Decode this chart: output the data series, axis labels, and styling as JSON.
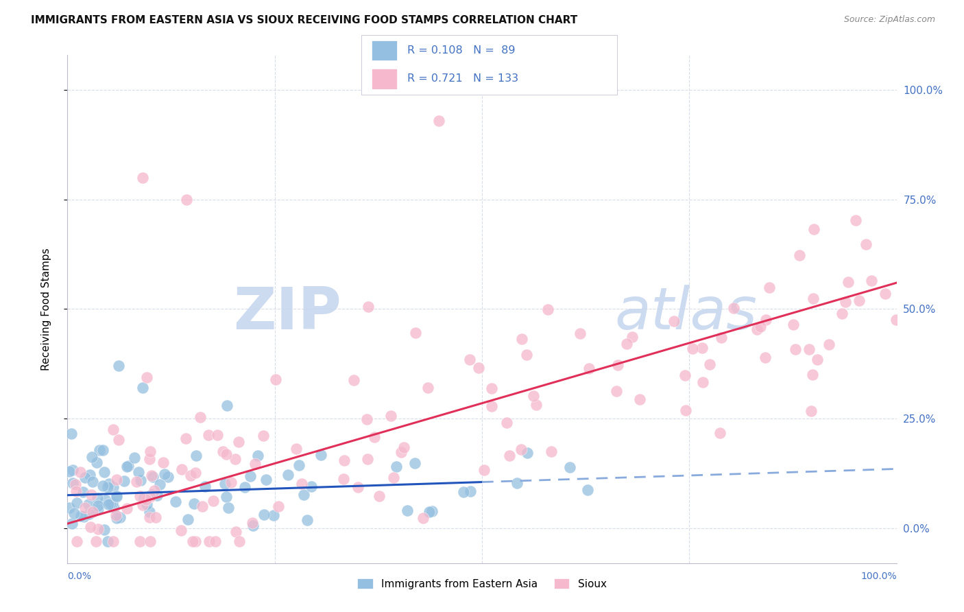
{
  "title": "IMMIGRANTS FROM EASTERN ASIA VS SIOUX RECEIVING FOOD STAMPS CORRELATION CHART",
  "source": "Source: ZipAtlas.com",
  "ylabel": "Receiving Food Stamps",
  "ytick_values": [
    0,
    25,
    50,
    75,
    100
  ],
  "xlim": [
    0,
    100
  ],
  "ylim": [
    -8,
    108
  ],
  "legend_label1": "Immigrants from Eastern Asia",
  "legend_label2": "Sioux",
  "r1": 0.108,
  "n1": 89,
  "r2": 0.721,
  "n2": 133,
  "color_blue": "#94bfe0",
  "color_pink": "#f5b8cc",
  "color_blue_text": "#4472c4",
  "line_blue": "#2255bb",
  "line_pink": "#e0305a",
  "line_dashed_color": "#88aadd",
  "background_color": "#ffffff",
  "grid_color": "#d8dce8",
  "watermark_zip_color": "#c5d5ee",
  "watermark_atlas_color": "#c5d5ee"
}
